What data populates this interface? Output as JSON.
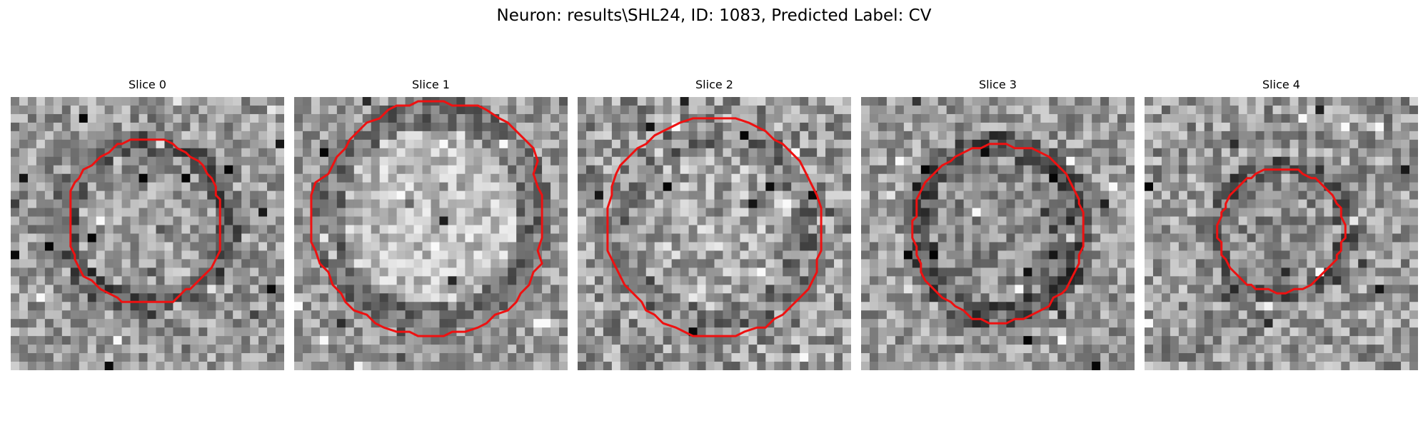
{
  "figure": {
    "title": "Neuron: results\\SHL24, ID: 1083, Predicted Label: CV",
    "contour_color": "#ee1111"
  },
  "slices": [
    {
      "title": "Slice 0"
    },
    {
      "title": "Slice 1"
    },
    {
      "title": "Slice 2"
    },
    {
      "title": "Slice 3"
    },
    {
      "title": "Slice 4"
    }
  ]
}
